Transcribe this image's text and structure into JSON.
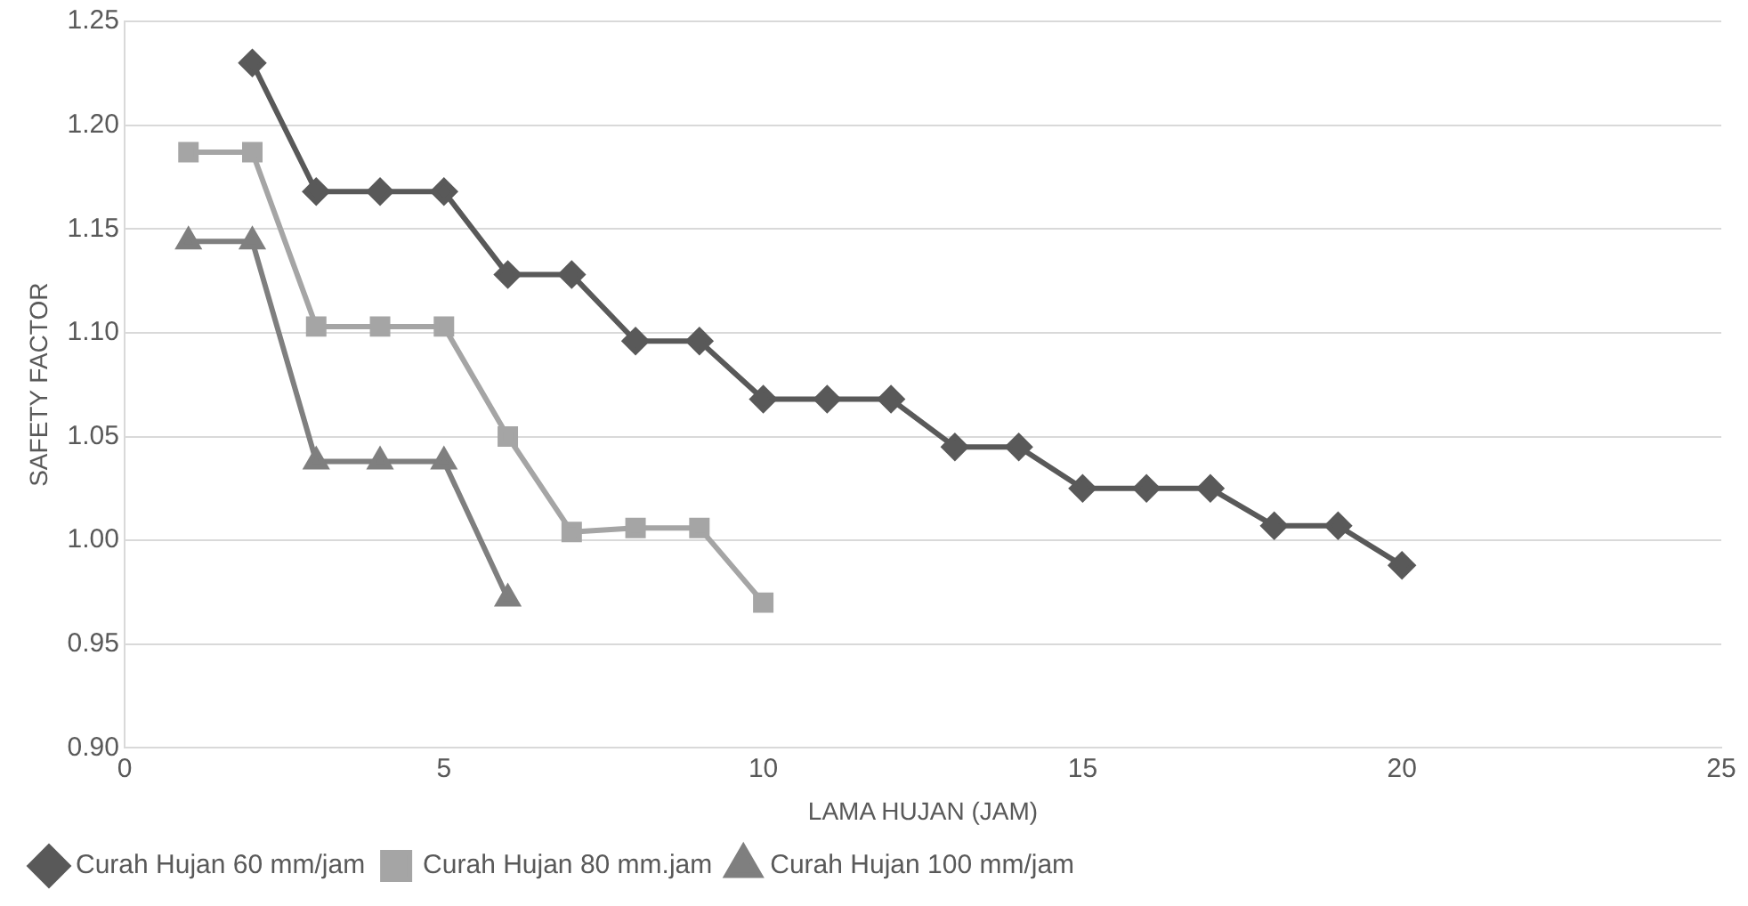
{
  "chart_data": {
    "type": "line",
    "xlabel": "LAMA HUJAN (JAM)",
    "ylabel": "SAFETY FACTOR",
    "xlim": [
      0,
      25
    ],
    "xticks": [
      0,
      5,
      10,
      15,
      20,
      25
    ],
    "ylim": [
      0.9,
      1.25
    ],
    "yticks": [
      {
        "value": 0.9,
        "label": "0.90"
      },
      {
        "value": 0.95,
        "label": "0.95"
      },
      {
        "value": 1.0,
        "label": "1.00"
      },
      {
        "value": 1.05,
        "label": "1.05"
      },
      {
        "value": 1.1,
        "label": "1.10"
      },
      {
        "value": 1.15,
        "label": "1.15"
      },
      {
        "value": 1.2,
        "label": "1.20"
      },
      {
        "value": 1.25,
        "label": "1.25"
      }
    ],
    "grid": "y",
    "legend": "bottom",
    "series": [
      {
        "name": "Curah Hujan 60 mm/jam",
        "color": "#595959",
        "marker": "diamond",
        "x": [
          2,
          3,
          4,
          5,
          6,
          7,
          8,
          9,
          10,
          11,
          12,
          13,
          14,
          15,
          16,
          17,
          18,
          19,
          20
        ],
        "values": [
          1.23,
          1.168,
          1.168,
          1.168,
          1.128,
          1.128,
          1.096,
          1.096,
          1.068,
          1.068,
          1.068,
          1.045,
          1.045,
          1.025,
          1.025,
          1.025,
          1.007,
          1.007,
          0.988
        ]
      },
      {
        "name": "Curah Hujan 80 mm.jam",
        "color": "#a5a5a5",
        "marker": "square",
        "x": [
          1,
          2,
          3,
          4,
          5,
          6,
          7,
          8,
          9,
          10
        ],
        "values": [
          1.187,
          1.187,
          1.103,
          1.103,
          1.103,
          1.05,
          1.004,
          1.006,
          1.006,
          0.97
        ]
      },
      {
        "name": "Curah Hujan 100 mm/jam",
        "color": "#7f7f7f",
        "marker": "triangle",
        "x": [
          1,
          2,
          3,
          4,
          5,
          6
        ],
        "values": [
          1.144,
          1.144,
          1.038,
          1.038,
          1.038,
          0.972
        ]
      }
    ]
  }
}
